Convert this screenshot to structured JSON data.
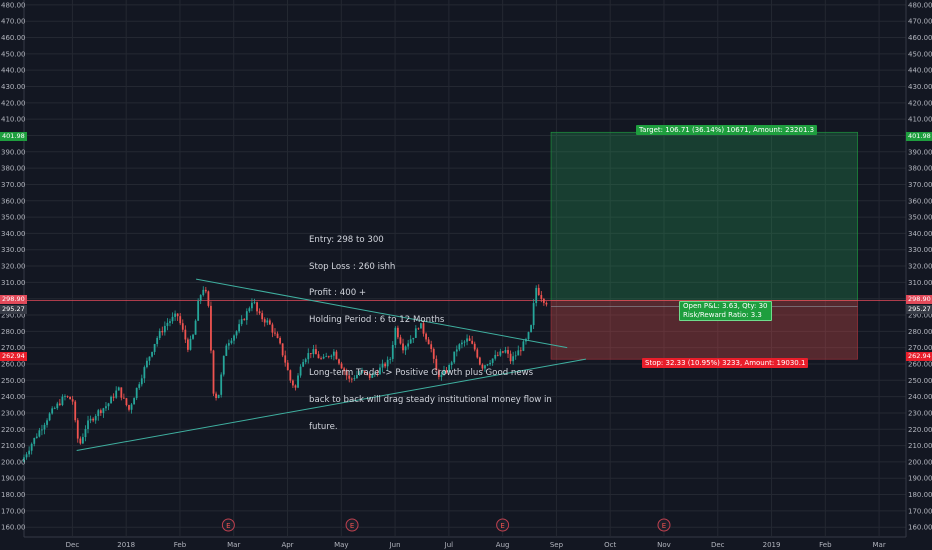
{
  "chart_data": {
    "type": "candlestick",
    "y_axis": {
      "range": [
        154,
        483
      ],
      "ticks": [
        160,
        170,
        180,
        190,
        200,
        210,
        220,
        230,
        240,
        250,
        260,
        270,
        280,
        290,
        300,
        310,
        320,
        330,
        340,
        350,
        360,
        370,
        380,
        390,
        400,
        410,
        420,
        430,
        440,
        450,
        460,
        470,
        480
      ],
      "tick_labels": [
        "160.00",
        "170.00",
        "180.00",
        "190.00",
        "200.00",
        "210.00",
        "220.00",
        "230.00",
        "240.00",
        "250.00",
        "260.00",
        "270.00",
        "280.00",
        "290.00",
        "300.00",
        "310.00",
        "320.00",
        "330.00",
        "340.00",
        "350.00",
        "360.00",
        "370.00",
        "380.00",
        "390.00",
        "400.00",
        "410.00",
        "420.00",
        "430.00",
        "440.00",
        "450.00",
        "460.00",
        "470.00",
        "480.00"
      ]
    },
    "x_axis": {
      "labels": [
        "Dec",
        "2018",
        "Feb",
        "Mar",
        "Apr",
        "May",
        "Jun",
        "Jul",
        "Aug",
        "Sep",
        "Oct",
        "Nov",
        "Dec",
        "2019",
        "Feb",
        "Mar"
      ],
      "months_index": [
        1,
        2,
        3,
        4,
        5,
        6,
        7,
        8,
        9,
        10,
        11,
        12,
        13,
        14,
        15,
        16
      ],
      "range_months": [
        0.1,
        16.5
      ]
    },
    "price_anchors": [
      [
        0.1,
        200
      ],
      [
        0.3,
        212
      ],
      [
        0.6,
        228
      ],
      [
        0.9,
        240
      ],
      [
        1.05,
        238
      ],
      [
        1.12,
        218
      ],
      [
        1.18,
        210
      ],
      [
        1.3,
        222
      ],
      [
        1.5,
        230
      ],
      [
        1.7,
        235
      ],
      [
        1.9,
        245
      ],
      [
        2.0,
        238
      ],
      [
        2.1,
        232
      ],
      [
        2.3,
        250
      ],
      [
        2.6,
        275
      ],
      [
        2.8,
        285
      ],
      [
        3.0,
        290
      ],
      [
        3.1,
        280
      ],
      [
        3.2,
        270
      ],
      [
        3.3,
        278
      ],
      [
        3.4,
        300
      ],
      [
        3.5,
        308
      ],
      [
        3.6,
        290
      ],
      [
        3.65,
        245
      ],
      [
        3.75,
        238
      ],
      [
        3.9,
        272
      ],
      [
        4.1,
        280
      ],
      [
        4.3,
        292
      ],
      [
        4.4,
        300
      ],
      [
        4.5,
        290
      ],
      [
        4.7,
        285
      ],
      [
        4.9,
        272
      ],
      [
        5.0,
        262
      ],
      [
        5.1,
        250
      ],
      [
        5.2,
        245
      ],
      [
        5.3,
        262
      ],
      [
        5.5,
        268
      ],
      [
        5.7,
        262
      ],
      [
        5.9,
        268
      ],
      [
        6.0,
        262
      ],
      [
        6.2,
        250
      ],
      [
        6.4,
        255
      ],
      [
        6.6,
        252
      ],
      [
        6.8,
        258
      ],
      [
        6.95,
        262
      ],
      [
        7.05,
        282
      ],
      [
        7.2,
        270
      ],
      [
        7.4,
        278
      ],
      [
        7.5,
        285
      ],
      [
        7.6,
        278
      ],
      [
        7.7,
        272
      ],
      [
        7.8,
        256
      ],
      [
        7.9,
        252
      ],
      [
        8.05,
        258
      ],
      [
        8.2,
        270
      ],
      [
        8.4,
        275
      ],
      [
        8.55,
        268
      ],
      [
        8.65,
        258
      ],
      [
        8.8,
        262
      ],
      [
        8.95,
        265
      ],
      [
        9.1,
        268
      ],
      [
        9.2,
        262
      ],
      [
        9.35,
        268
      ],
      [
        9.5,
        275
      ],
      [
        9.6,
        285
      ],
      [
        9.65,
        308
      ],
      [
        9.75,
        302
      ],
      [
        9.85,
        298
      ]
    ],
    "current_price": "295.27",
    "prices_marked": {
      "target": "401.98",
      "entry": "298.90",
      "stop": "262.94",
      "current": "295.27"
    },
    "trendlines": [
      {
        "name": "upper",
        "from": [
          3.3,
          312
        ],
        "to": [
          10.2,
          270
        ]
      },
      {
        "name": "lower",
        "from": [
          1.08,
          207
        ],
        "to": [
          10.55,
          263
        ]
      }
    ],
    "position": {
      "type": "long",
      "entry": 298.9,
      "target_price": 401.98,
      "stop_price": 262.94,
      "current": 295.27,
      "start_month": 9.9,
      "end_month": 15.6,
      "target_label": "Target: 106.71 (36.14%) 10671, Amount: 23201.3",
      "stop_label": "Stop: 32.33 (10.95%) 3233, Amount: 19030.1",
      "pnl_label": "Open P&L: 3.63, Qty: 30",
      "rr_label": "Risk/Reward Ratio: 3.3"
    },
    "earnings_markers": {
      "label": "E",
      "months": [
        3.9,
        6.2,
        9.0,
        12.0
      ]
    },
    "annotation_lines": [
      "Entry: 298 to 300",
      "Stop Loss : 260 ishh",
      "Profit : 400 +",
      "Holding Period : 6 to 12 Months",
      "",
      "Long-term Trade -> Positive Growth plus Good news",
      "back to back will drag steady institutional money flow in",
      "future."
    ]
  },
  "colors": {
    "background": "#131722",
    "grid": "#242832",
    "axis_text": "#b2b5be",
    "up_candle": "#26a69a",
    "down_candle": "#ef5350",
    "target_zone": "rgba(38,166,91,0.28)",
    "stop_zone": "rgba(239,83,80,0.30)",
    "target_tag": "#1e9e3e",
    "stop_tag": "#e91e2b",
    "entry_line": "#e14a5a",
    "trendline": "#3fb0a0"
  }
}
